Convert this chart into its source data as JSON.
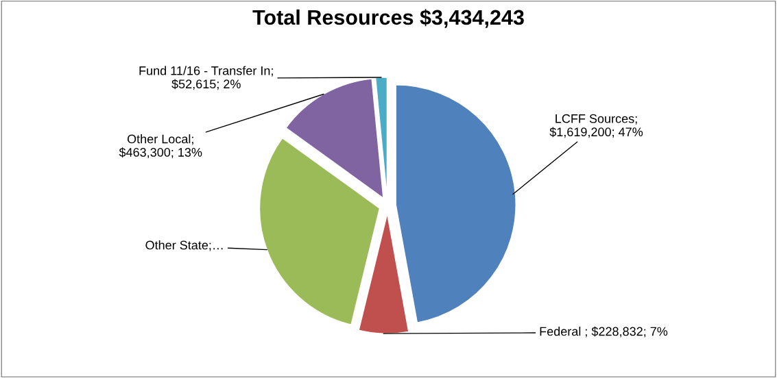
{
  "chart_data": {
    "type": "pie",
    "title": "Total Resources $3,434,243",
    "categories": [
      "LCFF Sources",
      "Federal ",
      "Other State",
      "Other Local",
      "Fund 11/16 - Transfer In"
    ],
    "values": [
      1619200,
      228832,
      1070296,
      463300,
      52615
    ],
    "colors": [
      "#4f81bd",
      "#c0504d",
      "#9bbb59",
      "#8064a2",
      "#4bacc6"
    ],
    "value_labels": [
      ";\n$1,619,200; 47%",
      "; $228,832; 7%",
      ";…",
      ";\n$463,300; 13%",
      ";\n$52,615; 2%"
    ],
    "legend": false
  }
}
